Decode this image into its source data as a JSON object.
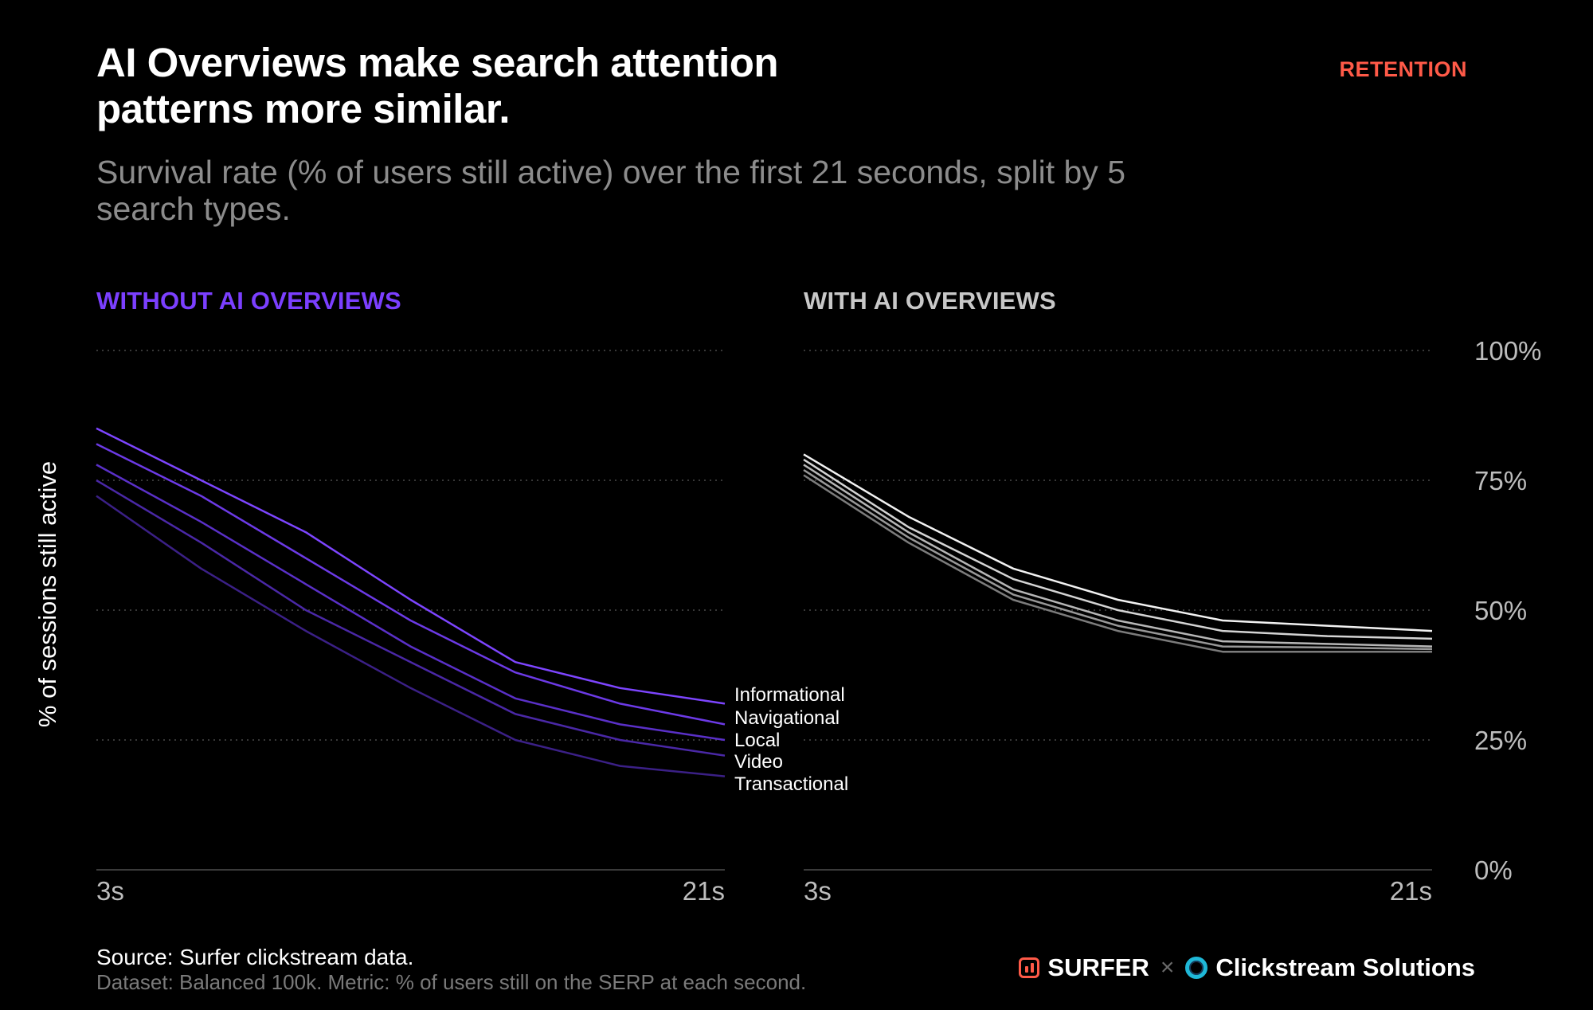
{
  "header": {
    "title": "AI Overviews make search attention patterns more similar.",
    "badge": "RETENTION",
    "subtitle": "Survival rate (% of users still active) over the first 21 seconds, split by 5 search types."
  },
  "colors": {
    "badge": "#ff5a48",
    "without_title": "#7b3fff",
    "with_title": "#c8c8c8",
    "without_series": [
      "#7d45ff",
      "#6c3ae6",
      "#5a30c8",
      "#4a28a6",
      "#3b2086"
    ],
    "with_series": [
      "#f2f2f2",
      "#d4d4d4",
      "#b6b6b6",
      "#989898",
      "#7c7c7c"
    ],
    "grid": "#4a4a4a",
    "axis_text": "#bdbdbd"
  },
  "footer": {
    "source": "Source: Surfer clickstream data.",
    "dataset": "Dataset: Balanced 100k. Metric: % of users still on the SERP at each second.",
    "brand1": "SURFER",
    "separator": "×",
    "brand2": "Clickstream Solutions"
  },
  "chart_data": [
    {
      "type": "line",
      "title": "WITHOUT AI OVERVIEWS",
      "ylabel": "% of sessions still active",
      "xticks": [
        "3s",
        "21s"
      ],
      "yticks": [
        "100%",
        "75%",
        "50%",
        "25%",
        "0%"
      ],
      "ylim": [
        0,
        100
      ],
      "grid": true,
      "x": [
        3,
        6,
        9,
        12,
        15,
        18,
        21
      ],
      "series": [
        {
          "name": "Informational",
          "values": [
            85,
            75,
            65,
            52,
            40,
            35,
            32
          ]
        },
        {
          "name": "Navigational",
          "values": [
            82,
            72,
            60,
            48,
            38,
            32,
            28
          ]
        },
        {
          "name": "Local",
          "values": [
            78,
            67,
            55,
            43,
            33,
            28,
            25
          ]
        },
        {
          "name": "Video",
          "values": [
            75,
            63,
            50,
            40,
            30,
            25,
            22
          ]
        },
        {
          "name": "Transactional",
          "values": [
            72,
            58,
            46,
            35,
            25,
            20,
            18
          ]
        }
      ]
    },
    {
      "type": "line",
      "title": "WITH AI OVERVIEWS",
      "xticks": [
        "3s",
        "21s"
      ],
      "yticks": [
        "100%",
        "75%",
        "50%",
        "25%",
        "0%"
      ],
      "ylim": [
        0,
        100
      ],
      "grid": true,
      "x": [
        3,
        6,
        9,
        12,
        15,
        18,
        21
      ],
      "series": [
        {
          "values": [
            80,
            68,
            58,
            52,
            48,
            47,
            46
          ]
        },
        {
          "values": [
            79,
            66,
            56,
            50,
            46,
            45,
            44.5
          ]
        },
        {
          "values": [
            78,
            65,
            54,
            48,
            44,
            43.5,
            43
          ]
        },
        {
          "values": [
            77,
            64,
            53,
            47,
            43,
            42.8,
            42.5
          ]
        },
        {
          "values": [
            76,
            63,
            52,
            46,
            42,
            42,
            42
          ]
        }
      ]
    }
  ]
}
